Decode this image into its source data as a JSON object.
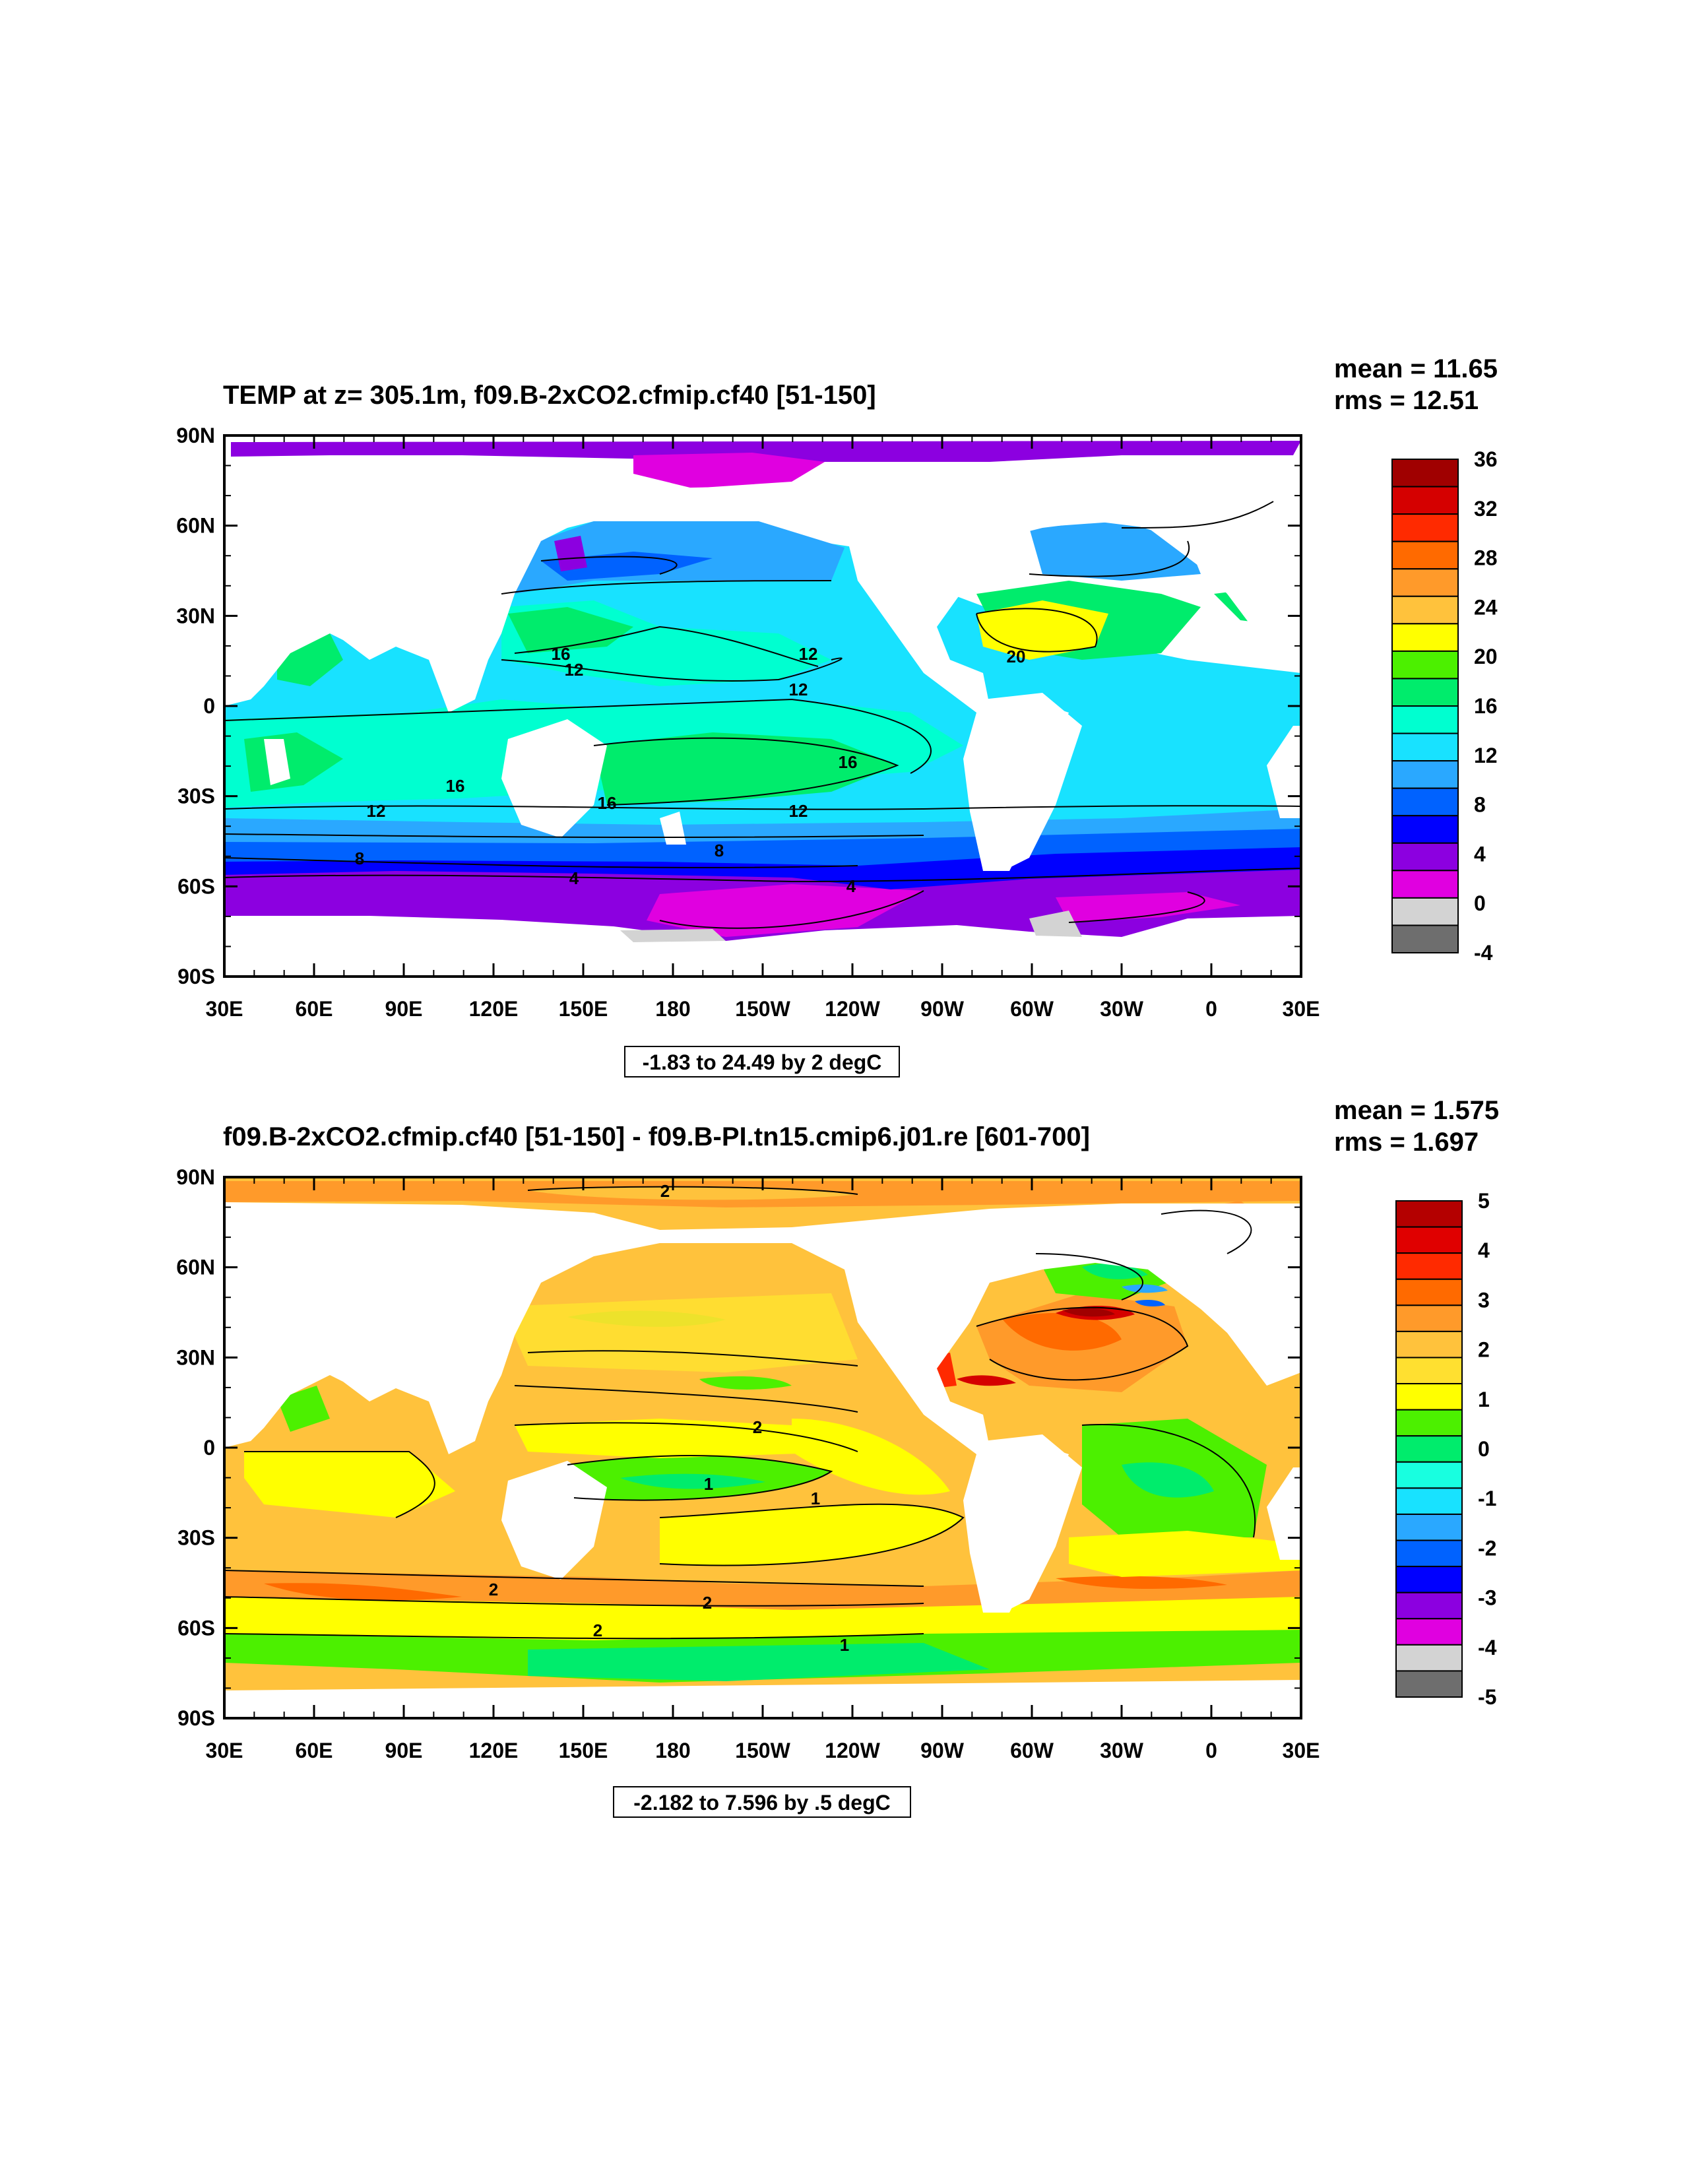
{
  "panels": [
    {
      "title": "TEMP at z= 305.1m, f09.B-2xCO2.cfmip.cf40 [51-150]",
      "mean_text": "mean = 11.65",
      "rms_text": "rms = 12.51",
      "range_text": "-1.83 to 24.49 by 2 degC",
      "lat_ticks": [
        "90N",
        "60N",
        "30N",
        "0",
        "30S",
        "60S",
        "90S"
      ],
      "lon_ticks": [
        "30E",
        "60E",
        "90E",
        "120E",
        "150E",
        "180",
        "150W",
        "120W",
        "90W",
        "60W",
        "30W",
        "0",
        "30E"
      ],
      "colorbar_labels": [
        "36",
        "32",
        "28",
        "24",
        "20",
        "16",
        "12",
        "8",
        "4",
        "0",
        "-4"
      ],
      "colorbar_colors": [
        "#a00000",
        "#d50000",
        "#ff2a00",
        "#ff6a00",
        "#ff9a2a",
        "#ffc23c",
        "#ffff00",
        "#4cf000",
        "#00ec6c",
        "#00ffd0",
        "#18e2ff",
        "#2aa8ff",
        "#0062ff",
        "#0000ff",
        "#8c00e0",
        "#e000e0",
        "#d3d3d3",
        "#6e6e6e"
      ],
      "contour_labels": [
        "16",
        "12",
        "12",
        "12",
        "20",
        "16",
        "16",
        "16",
        "12",
        "12",
        "8",
        "8",
        "4",
        "4"
      ]
    },
    {
      "title": "f09.B-2xCO2.cfmip.cf40 [51-150] - f09.B-PI.tn15.cmip6.j01.re [601-700]",
      "mean_text": "mean = 1.575",
      "rms_text": "rms = 1.697",
      "range_text": "-2.182 to 7.596 by .5 degC",
      "lat_ticks": [
        "90N",
        "60N",
        "30N",
        "0",
        "30S",
        "60S",
        "90S"
      ],
      "lon_ticks": [
        "30E",
        "60E",
        "90E",
        "120E",
        "150E",
        "180",
        "150W",
        "120W",
        "90W",
        "60W",
        "30W",
        "0",
        "30E"
      ],
      "colorbar_labels": [
        "5",
        "4",
        "3",
        "2",
        "1",
        "0",
        "-1",
        "-2",
        "-3",
        "-4",
        "-5"
      ],
      "colorbar_colors": [
        "#b40000",
        "#e00000",
        "#ff2a00",
        "#ff6a00",
        "#ff9a2a",
        "#ffc23c",
        "#ffe030",
        "#ffff00",
        "#4cf000",
        "#00ec6c",
        "#18ffe0",
        "#18e2ff",
        "#2aa8ff",
        "#0062ff",
        "#0000ff",
        "#8c00e0",
        "#e000e0",
        "#d3d3d3",
        "#6e6e6e"
      ],
      "contour_labels": [
        "2",
        "2",
        "1",
        "1",
        "2",
        "2",
        "2",
        "1"
      ]
    }
  ]
}
